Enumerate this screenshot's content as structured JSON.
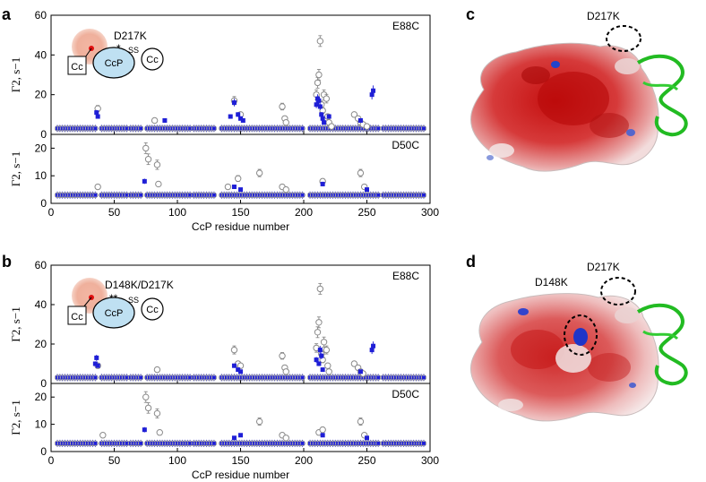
{
  "figure": {
    "panels": {
      "a": "a",
      "b": "b",
      "c": "c",
      "d": "d"
    },
    "structures": {
      "c": {
        "labels": [
          "D217K"
        ]
      },
      "d": {
        "labels": [
          "D148K",
          "D217K"
        ]
      }
    },
    "schemes": {
      "a": {
        "mutation": "D217K",
        "stars": "*",
        "ss": "SS",
        "left_box": "Cc",
        "ccp": "CcP",
        "right_circle": "Cc"
      },
      "b": {
        "mutation": "D148K/D217K",
        "stars": "**",
        "ss": "SS",
        "left_box": "Cc",
        "ccp": "CcP",
        "right_circle": "Cc"
      }
    },
    "colors": {
      "blue": "#1f1fd6",
      "grey": "#8a8a8a",
      "red_surface": "#cc1a1a",
      "green_ribbon": "#22bb22"
    }
  },
  "chart_data": [
    {
      "type": "scatter",
      "panel": "a",
      "title": "E88C",
      "xlabel": "",
      "ylabel": "Γ2, s−1",
      "xlim": [
        0,
        300
      ],
      "ylim": [
        0,
        60
      ],
      "yticks": [
        0,
        20,
        40,
        60
      ],
      "series": [
        {
          "marker": "open-grey-circle",
          "x": [
            37,
            82,
            145,
            150,
            183,
            185,
            186,
            210,
            211,
            212,
            213,
            214,
            215,
            216,
            218,
            219,
            220,
            222,
            240,
            243,
            245,
            247,
            250
          ],
          "y": [
            13,
            7,
            17,
            10,
            14,
            8,
            6,
            20,
            26,
            30,
            47,
            15,
            12,
            20,
            18,
            9,
            6,
            4,
            10,
            8,
            6,
            5,
            4
          ]
        },
        {
          "marker": "filled-blue-square",
          "x": [
            36,
            37,
            90,
            142,
            145,
            148,
            150,
            152,
            210,
            211,
            212,
            213,
            214,
            215,
            216,
            220,
            245,
            254,
            255
          ],
          "y": [
            11,
            9,
            7,
            9,
            16,
            10,
            8,
            7,
            15,
            18,
            17,
            14,
            10,
            8,
            6,
            9,
            7,
            20,
            22
          ]
        }
      ]
    },
    {
      "type": "scatter",
      "panel": "a",
      "title": "D50C",
      "xlabel": "CcP residue number",
      "ylabel": "Γ2, s−1",
      "xlim": [
        0,
        300
      ],
      "xticks": [
        0,
        50,
        100,
        150,
        200,
        250,
        300
      ],
      "ylim": [
        0,
        25
      ],
      "yticks": [
        0,
        10,
        20
      ],
      "series": [
        {
          "marker": "open-grey-circle",
          "x": [
            37,
            75,
            77,
            84,
            85,
            140,
            148,
            165,
            183,
            186,
            215,
            245,
            248
          ],
          "y": [
            6,
            20,
            16,
            14,
            7,
            6,
            9,
            11,
            6,
            5,
            8,
            11,
            6
          ]
        },
        {
          "marker": "filled-blue-square",
          "x": [
            74,
            145,
            150,
            215,
            250
          ],
          "y": [
            8,
            6,
            5,
            7,
            5
          ]
        }
      ]
    },
    {
      "type": "scatter",
      "panel": "b",
      "title": "E88C",
      "xlabel": "",
      "ylabel": "Γ2, s−1",
      "xlim": [
        0,
        300
      ],
      "ylim": [
        0,
        60
      ],
      "yticks": [
        0,
        20,
        40,
        60
      ],
      "series": [
        {
          "marker": "open-grey-circle",
          "x": [
            37,
            84,
            145,
            148,
            150,
            183,
            185,
            186,
            210,
            211,
            212,
            213,
            214,
            215,
            216,
            218,
            219,
            220,
            240,
            243,
            245,
            247
          ],
          "y": [
            9,
            7,
            17,
            10,
            9,
            14,
            8,
            6,
            18,
            26,
            31,
            48,
            15,
            12,
            21,
            17,
            9,
            6,
            10,
            8,
            6,
            5
          ]
        },
        {
          "marker": "filled-blue-square",
          "x": [
            35,
            36,
            37,
            145,
            148,
            150,
            210,
            212,
            213,
            214,
            215,
            245,
            254,
            255
          ],
          "y": [
            10,
            13,
            9,
            9,
            7,
            6,
            12,
            10,
            17,
            14,
            7,
            6,
            17,
            19
          ]
        }
      ]
    },
    {
      "type": "scatter",
      "panel": "b",
      "title": "D50C",
      "xlabel": "CcP residue number",
      "ylabel": "Γ2, s−1",
      "xlim": [
        0,
        300
      ],
      "xticks": [
        0,
        50,
        100,
        150,
        200,
        250,
        300
      ],
      "ylim": [
        0,
        25
      ],
      "yticks": [
        0,
        10,
        20
      ],
      "series": [
        {
          "marker": "open-grey-circle",
          "x": [
            41,
            75,
            77,
            84,
            86,
            165,
            183,
            186,
            212,
            215,
            245,
            248
          ],
          "y": [
            6,
            20,
            16,
            14,
            7,
            11,
            6,
            5,
            7,
            8,
            11,
            6
          ]
        },
        {
          "marker": "filled-blue-square",
          "x": [
            74,
            145,
            150,
            215,
            250
          ],
          "y": [
            8,
            5,
            6,
            6,
            5
          ]
        }
      ]
    }
  ]
}
